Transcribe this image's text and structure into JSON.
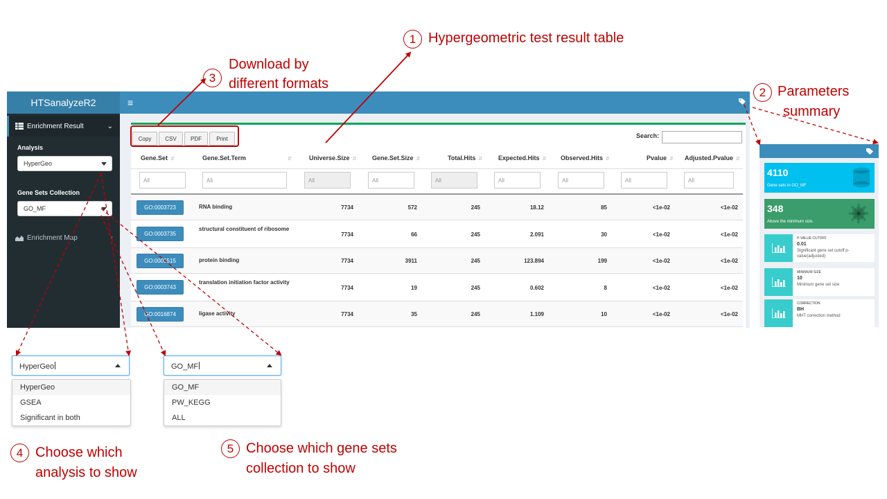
{
  "app": {
    "title": "HTSanalyzeR2",
    "menu": [
      {
        "label": "Enrichment Result",
        "icon": "table-icon",
        "active": true
      },
      {
        "label": "Enrichment Map",
        "icon": "area-chart-icon",
        "active": false
      }
    ],
    "analysis": {
      "label": "Analysis",
      "value": "HyperGeo"
    },
    "collection": {
      "label": "Gene Sets Collection",
      "value": "GO_MF"
    }
  },
  "toolbar": {
    "buttons": [
      "Copy",
      "CSV",
      "PDF",
      "Print"
    ],
    "search_label": "Search:"
  },
  "table": {
    "columns": [
      "Gene.Set",
      "Gene.Set.Term",
      "Universe.Size",
      "Gene.Set.Size",
      "Total.Hits",
      "Expected.Hits",
      "Observed.Hits",
      "Pvalue",
      "Adjusted.Pvalue"
    ],
    "filter_placeholder": "All",
    "rows": [
      {
        "gene_set": "GO:0003723",
        "term": "RNA binding",
        "universe": "7734",
        "size": "572",
        "total": "245",
        "expected": "18.12",
        "observed": "85",
        "pvalue": "<1e-02",
        "adj": "<1e-02"
      },
      {
        "gene_set": "GO:0003735",
        "term": "structural constituent of ribosome",
        "universe": "7734",
        "size": "66",
        "total": "245",
        "expected": "2.091",
        "observed": "30",
        "pvalue": "<1e-02",
        "adj": "<1e-02"
      },
      {
        "gene_set": "GO:0005515",
        "term": "protein binding",
        "universe": "7734",
        "size": "3911",
        "total": "245",
        "expected": "123.894",
        "observed": "199",
        "pvalue": "<1e-02",
        "adj": "<1e-02"
      },
      {
        "gene_set": "GO:0003743",
        "term": "translation initiation factor activity",
        "universe": "7734",
        "size": "19",
        "total": "245",
        "expected": "0.602",
        "observed": "8",
        "pvalue": "<1e-02",
        "adj": "<1e-02"
      },
      {
        "gene_set": "GO:0016874",
        "term": "ligase activity",
        "universe": "7734",
        "size": "35",
        "total": "245",
        "expected": "1.109",
        "observed": "10",
        "pvalue": "<1e-02",
        "adj": "<1e-02"
      }
    ]
  },
  "params": {
    "value_boxes": [
      {
        "value": "4110",
        "caption": "Gene sets in GO_MF",
        "color": "#00c0ef"
      },
      {
        "value": "348",
        "caption": "Above the minimum size.",
        "color": "#3a9d6b"
      }
    ],
    "info_boxes": [
      {
        "title": "P-VALUE CUTOFF",
        "value": "0.01",
        "desc": "Significant gene set cutoff p-value(adjusted)"
      },
      {
        "title": "MINIMUM SIZE",
        "value": "10",
        "desc": "Minimum gene set size"
      },
      {
        "title": "CORRECTION",
        "value": "BH",
        "desc": "MHT correction method"
      }
    ]
  },
  "dropdown_analysis": {
    "value": "HyperGeo",
    "options": [
      "HyperGeo",
      "GSEA",
      "Significant in both"
    ]
  },
  "dropdown_collection": {
    "value": "GO_MF",
    "options": [
      "GO_MF",
      "PW_KEGG",
      "ALL"
    ]
  },
  "annotations": [
    {
      "num": "1",
      "text": "Hypergeometric test result table"
    },
    {
      "num": "2",
      "line1": "Parameters",
      "line2": "summary"
    },
    {
      "num": "3",
      "line1": "Download by",
      "line2": "different formats"
    },
    {
      "num": "4",
      "line1": "Choose which",
      "line2": "analysis to show"
    },
    {
      "num": "5",
      "line1": "Choose which gene sets",
      "line2": "collection to show"
    }
  ],
  "colors": {
    "accent": "#c00000",
    "header": "#3c8dbc",
    "sidebar": "#222d32",
    "button": "#3c8dbc"
  }
}
